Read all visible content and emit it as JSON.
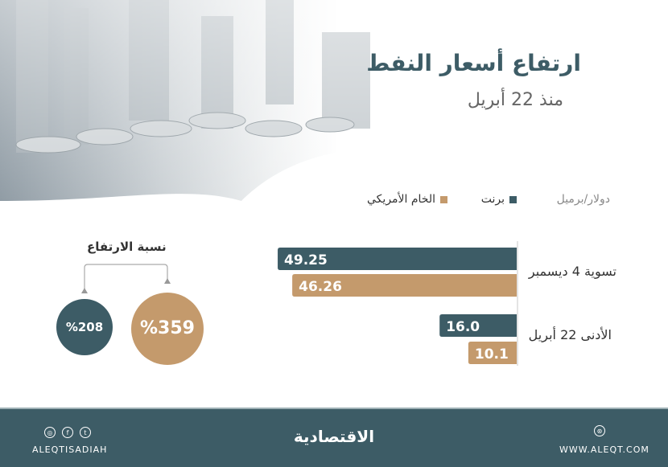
{
  "header": {
    "title": "ارتفاع أسعار النفط",
    "subtitle": "منذ 22 أبريل"
  },
  "chart_data": {
    "type": "bar",
    "orientation": "horizontal",
    "unit_label": "دولار/برميل",
    "categories": [
      "تسوية 4 ديسمبر",
      "الأدنى 22 أبريل"
    ],
    "series": [
      {
        "name": "برنت",
        "color": "#3d5c66",
        "values": [
          49.25,
          16.0
        ],
        "labels": [
          "49.25",
          "16.0"
        ]
      },
      {
        "name": "الخام الأمريكي",
        "color": "#c49a6c",
        "values": [
          46.26,
          10.1
        ],
        "labels": [
          "46.26",
          "10.1"
        ]
      }
    ]
  },
  "increase": {
    "title": "نسبة الارتفاع",
    "brent": {
      "label": "%208",
      "color": "#3d5c66"
    },
    "wti": {
      "label": "%359",
      "color": "#c49a6c"
    }
  },
  "footer": {
    "social_handle": "ALEQTISADIAH",
    "logo": "الاقتصادية",
    "website": "WWW.ALEQT.COM",
    "icons": [
      "instagram-icon",
      "facebook-icon",
      "twitter-icon",
      "web-icon"
    ]
  }
}
